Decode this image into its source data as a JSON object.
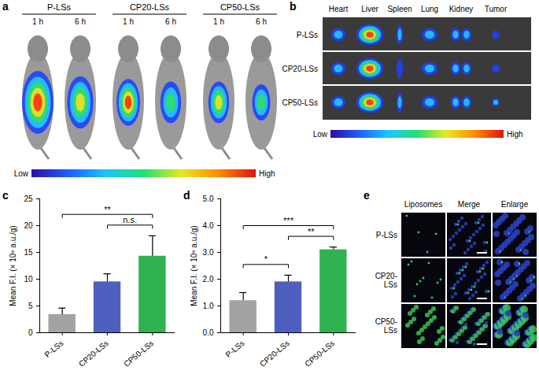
{
  "chart_data": [
    {
      "type": "bar",
      "panel": "c",
      "categories": [
        "P-LSs",
        "CP20-LSs",
        "CP50-LSs"
      ],
      "values": [
        3.4,
        9.5,
        14.3
      ],
      "errors": [
        1.2,
        1.5,
        3.8
      ],
      "colors": [
        "#a3a3a3",
        "#4f5fc0",
        "#2fb350"
      ],
      "y_label": "Mean F.I. (× 10⁹ a.u./g)",
      "ylim": [
        0,
        25
      ],
      "yticks": [
        0,
        5,
        10,
        15,
        20,
        25
      ],
      "significance": [
        {
          "from": 0,
          "to": 2,
          "text": "**"
        },
        {
          "from": 1,
          "to": 2,
          "text": "n.s."
        }
      ]
    },
    {
      "type": "bar",
      "panel": "d",
      "categories": [
        "P-LSs",
        "CP20-LSs",
        "CP50-LSs"
      ],
      "values": [
        1.2,
        1.9,
        3.1
      ],
      "errors": [
        0.3,
        0.25,
        0.1
      ],
      "colors": [
        "#a3a3a3",
        "#4f5fc0",
        "#2fb350"
      ],
      "y_label": "Mean F.I. (× 10⁹ a.u./g)",
      "ylim": [
        0,
        5
      ],
      "yticks": [
        0,
        1,
        2,
        3,
        4,
        5
      ],
      "significance": [
        {
          "from": 0,
          "to": 2,
          "text": "***"
        },
        {
          "from": 0,
          "to": 1,
          "text": "*"
        },
        {
          "from": 1,
          "to": 2,
          "text": "**"
        }
      ]
    }
  ],
  "panels": {
    "a": {
      "letter": "a",
      "groups": [
        "P-LSs",
        "CP20-LSs",
        "CP50-LSs"
      ],
      "times": [
        "1 h",
        "6 h"
      ],
      "colorbar": [
        "Low",
        "High"
      ]
    },
    "b": {
      "letter": "b",
      "organs": [
        "Heart",
        "Liver",
        "Spleen",
        "Lung",
        "Kidney",
        "Tumor"
      ],
      "rows": [
        "P-LSs",
        "CP20-LSs",
        "CP50-LSs"
      ],
      "colorbar": [
        "Low",
        "High"
      ]
    },
    "e": {
      "letter": "e",
      "columns": [
        "Liposomes",
        "Merge",
        "Enlarge"
      ],
      "rows": [
        "P-LSs",
        "CP20-LSs",
        "CP50-LSs"
      ]
    }
  }
}
